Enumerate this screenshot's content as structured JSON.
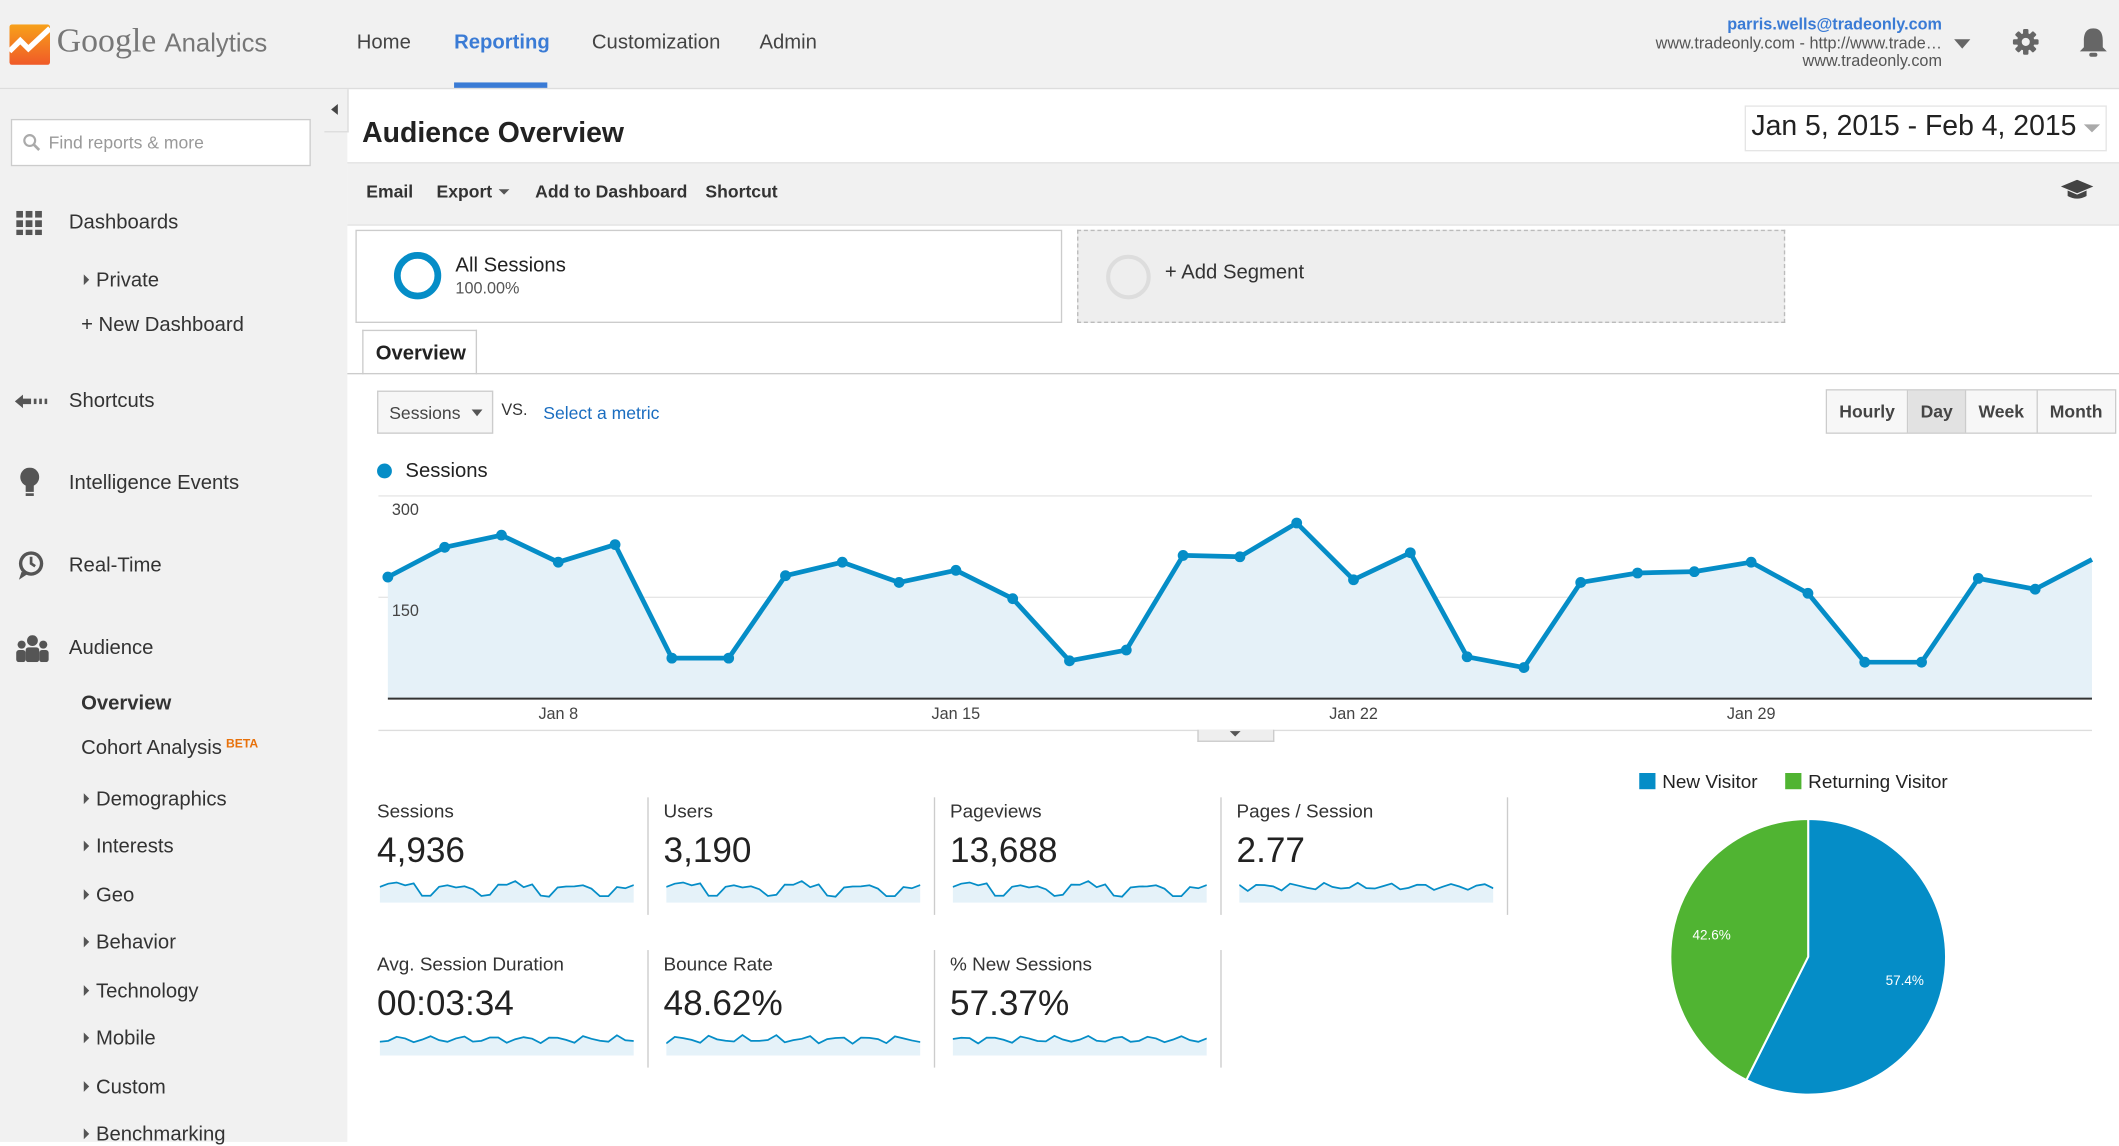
{
  "app": {
    "brand": "Google",
    "product": "Analytics"
  },
  "nav": {
    "items": [
      {
        "label": "Home"
      },
      {
        "label": "Reporting"
      },
      {
        "label": "Customization"
      },
      {
        "label": "Admin"
      }
    ],
    "active": "Reporting"
  },
  "account": {
    "email": "parris.wells@tradeonly.com",
    "property": "www.tradeonly.com - http://www.trade…",
    "view": "www.tradeonly.com"
  },
  "sidebar": {
    "search_placeholder": "Find reports & more",
    "sections": {
      "dashboards": "Dashboards",
      "private": "Private",
      "new_dashboard": "+ New Dashboard",
      "shortcuts": "Shortcuts",
      "intelligence": "Intelligence Events",
      "realtime": "Real-Time",
      "audience": "Audience"
    },
    "audience_items": {
      "overview": "Overview",
      "cohort": "Cohort Analysis",
      "cohort_badge": "BETA",
      "sub": [
        "Demographics",
        "Interests",
        "Geo",
        "Behavior",
        "Technology",
        "Mobile",
        "Custom",
        "Benchmarking"
      ]
    }
  },
  "page": {
    "title": "Audience Overview",
    "date_range": "Jan 5, 2015 - Feb 4, 2015"
  },
  "toolbar": {
    "email": "Email",
    "export": "Export",
    "add_dashboard": "Add to Dashboard",
    "shortcut": "Shortcut"
  },
  "segments": {
    "all": {
      "name": "All Sessions",
      "pct": "100.00%"
    },
    "add": "+ Add Segment"
  },
  "tabs": {
    "overview": "Overview"
  },
  "controls": {
    "metric": "Sessions",
    "vs": "VS.",
    "select_metric": "Select a metric",
    "granularity": [
      "Hourly",
      "Day",
      "Week",
      "Month"
    ],
    "active_granularity": "Day"
  },
  "colors": {
    "accent": "#3a7bd5",
    "series": "#058dc7",
    "new_visitor": "#058dc7",
    "returning_visitor": "#50b432"
  },
  "chart_data": [
    {
      "type": "area",
      "legend": "Sessions",
      "x": [
        "Jan 5",
        "Jan 6",
        "Jan 7",
        "Jan 8",
        "Jan 9",
        "Jan 10",
        "Jan 11",
        "Jan 12",
        "Jan 13",
        "Jan 14",
        "Jan 15",
        "Jan 16",
        "Jan 17",
        "Jan 18",
        "Jan 19",
        "Jan 20",
        "Jan 21",
        "Jan 22",
        "Jan 23",
        "Jan 24",
        "Jan 25",
        "Jan 26",
        "Jan 27",
        "Jan 28",
        "Jan 29",
        "Jan 30",
        "Jan 31",
        "Feb 1",
        "Feb 2",
        "Feb 3",
        "Feb 4"
      ],
      "series": [
        {
          "name": "Sessions",
          "values": [
            180,
            224,
            242,
            202,
            228,
            60,
            60,
            182,
            202,
            172,
            190,
            148,
            56,
            72,
            212,
            210,
            260,
            176,
            216,
            62,
            46,
            172,
            186,
            188,
            202,
            156,
            54,
            54,
            178,
            162,
            206
          ]
        }
      ],
      "ylim": [
        0,
        300
      ],
      "yticks": [
        "150",
        "300"
      ],
      "xticks": [
        "Jan 8",
        "Jan 15",
        "Jan 22",
        "Jan 29"
      ],
      "grid": true
    },
    {
      "type": "pie",
      "legend_position": "top",
      "slices": [
        {
          "name": "New Visitor",
          "value": 57.4,
          "label": "57.4%"
        },
        {
          "name": "Returning Visitor",
          "value": 42.6,
          "label": "42.6%"
        }
      ]
    }
  ],
  "metrics": [
    {
      "label": "Sessions",
      "value": "4,936"
    },
    {
      "label": "Users",
      "value": "3,190"
    },
    {
      "label": "Pageviews",
      "value": "13,688"
    },
    {
      "label": "Pages / Session",
      "value": "2.77"
    },
    {
      "label": "Avg. Session Duration",
      "value": "00:03:34"
    },
    {
      "label": "Bounce Rate",
      "value": "48.62%"
    },
    {
      "label": "% New Sessions",
      "value": "57.37%"
    }
  ]
}
